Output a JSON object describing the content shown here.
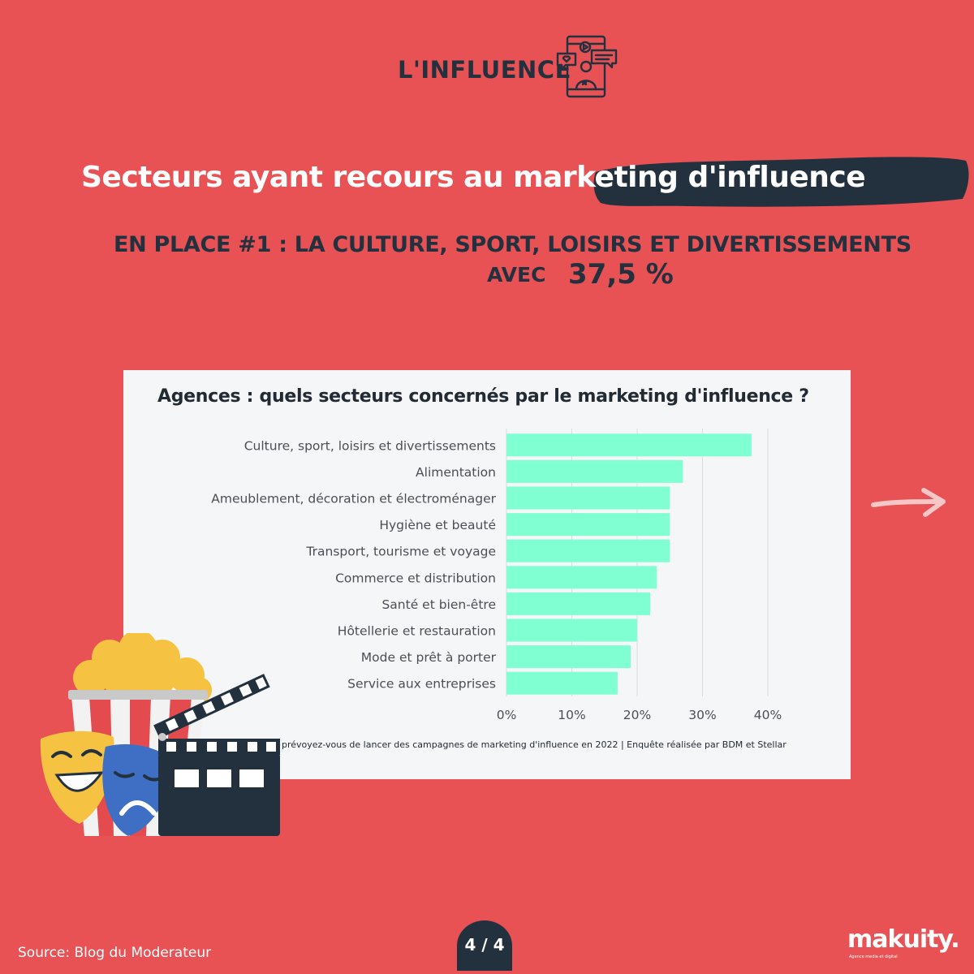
{
  "header": {
    "label": "L'INFLUENCE",
    "icon": "influencer-phone-icon"
  },
  "title": {
    "text": "Secteurs ayant recours au marketing d'influence",
    "highlight": "marketing d'influence"
  },
  "highlight": {
    "line": "EN PLACE #1 :  LA CULTURE, SPORT, LOISIRS ET DIVERTISSEMENTS",
    "avec_label": "AVEC",
    "value": "37,5 %"
  },
  "chart_data": {
    "type": "bar",
    "orientation": "horizontal",
    "title": "Agences : quels secteurs concernés par le marketing d'influence ?",
    "categories": [
      "Culture, sport, loisirs et divertissements",
      "Alimentation",
      "Ameublement, décoration et électroménager",
      "Hygiène et beauté",
      "Transport, tourisme et voyage",
      "Commerce et distribution",
      "Santé et bien-être",
      "Hôtellerie et restauration",
      "Mode et prêt à porter",
      "Service aux entreprises"
    ],
    "values": [
      37.5,
      27,
      25,
      25,
      25,
      23,
      22,
      20,
      19,
      17
    ],
    "xticks": [
      "0%",
      "10%",
      "20%",
      "30%",
      "40%"
    ],
    "xlim": [
      0,
      40
    ],
    "grid": true,
    "bar_color": "#80ffd2",
    "source": "prévoyez-vous de lancer des campagnes de marketing d'influence en 2022 | Enquête réalisée par BDM et Stellar"
  },
  "footer": {
    "source": "Source: Blog du Moderateur",
    "page": "4 / 4",
    "brand": "makuity.",
    "tagline": "Agence media et digital"
  },
  "decor": {
    "arrow_icon": "arrow-right-icon",
    "illustration": "popcorn-masks-clapperboard",
    "colors": {
      "background": "#e85255",
      "dark": "#23313f",
      "bar": "#80ffd2"
    }
  }
}
